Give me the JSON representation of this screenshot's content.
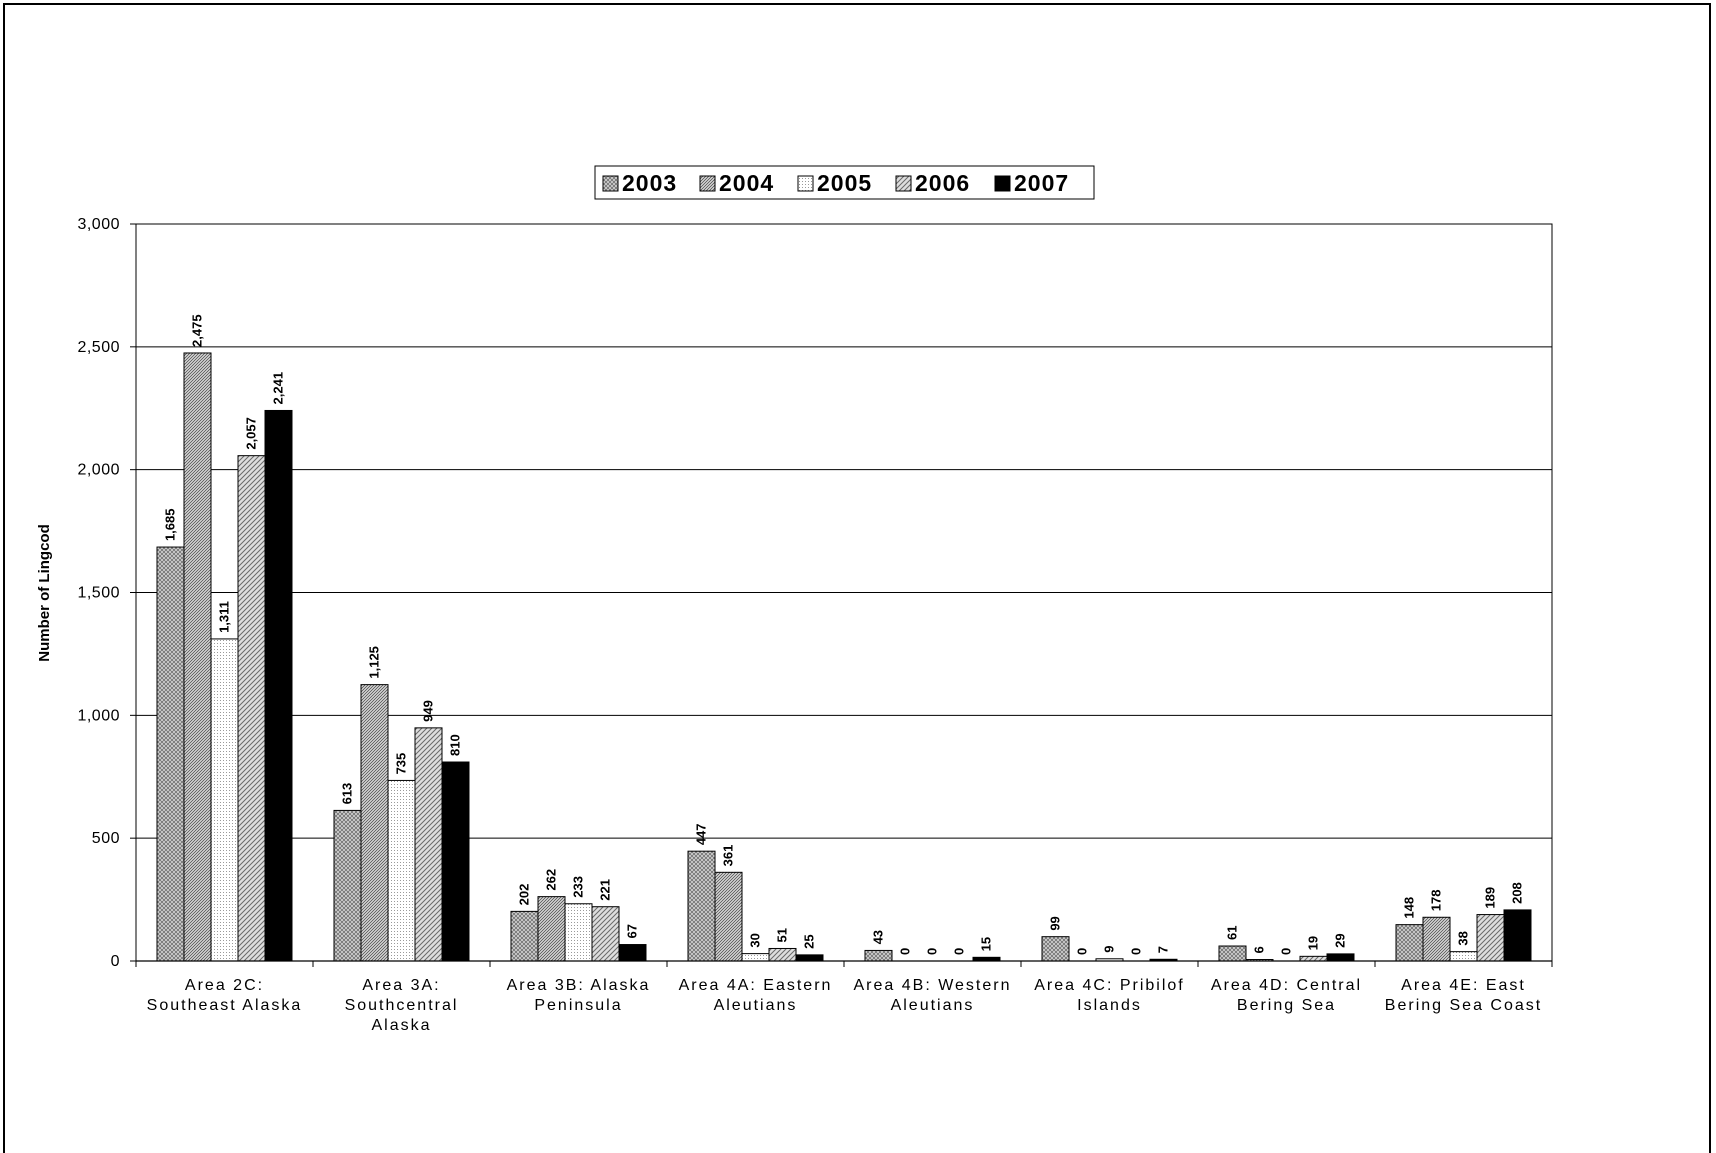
{
  "chart_data": {
    "type": "bar",
    "title": "",
    "xlabel": "",
    "ylabel": "Number of Lingcod",
    "ylim": [
      0,
      3000
    ],
    "yticks": [
      0,
      500,
      1000,
      1500,
      2000,
      2500,
      3000
    ],
    "ytick_labels": [
      "0",
      "500",
      "1,000",
      "1,500",
      "2,000",
      "2,500",
      "3,000"
    ],
    "grid": true,
    "legend_position": "top-center",
    "categories": [
      [
        "Area 2C:",
        "Southeast Alaska"
      ],
      [
        "Area 3A:",
        "Southcentral",
        "Alaska"
      ],
      [
        "Area 3B: Alaska",
        "Peninsula"
      ],
      [
        "Area 4A: Eastern",
        "Aleutians"
      ],
      [
        "Area 4B: Western",
        "Aleutians"
      ],
      [
        "Area 4C: Pribilof",
        "Islands"
      ],
      [
        "Area 4D: Central",
        "Bering Sea"
      ],
      [
        "Area 4E: East",
        "Bering Sea Coast"
      ]
    ],
    "series": [
      {
        "name": "2003",
        "pattern": "cross",
        "values": [
          1685,
          613,
          202,
          447,
          43,
          99,
          61,
          148
        ],
        "labels": [
          "1,685",
          "613",
          "202",
          "447",
          "43",
          "99",
          "61",
          "148"
        ]
      },
      {
        "name": "2004",
        "pattern": "diag-dense",
        "values": [
          2475,
          1125,
          262,
          361,
          0,
          0,
          6,
          178
        ],
        "labels": [
          "2,475",
          "1,125",
          "262",
          "361",
          "0",
          "0",
          "6",
          "178"
        ]
      },
      {
        "name": "2005",
        "pattern": "dots",
        "values": [
          1311,
          735,
          233,
          30,
          0,
          9,
          0,
          38
        ],
        "labels": [
          "1,311",
          "735",
          "233",
          "30",
          "0",
          "9",
          "0",
          "38"
        ]
      },
      {
        "name": "2006",
        "pattern": "diag-light",
        "values": [
          2057,
          949,
          221,
          51,
          0,
          0,
          19,
          189
        ],
        "labels": [
          "2,057",
          "949",
          "221",
          "51",
          "0",
          "0",
          "19",
          "189"
        ]
      },
      {
        "name": "2007",
        "pattern": "solid",
        "values": [
          2241,
          810,
          67,
          25,
          15,
          7,
          29,
          208
        ],
        "labels": [
          "2,241",
          "810",
          "67",
          "25",
          "15",
          "7",
          "29",
          "208"
        ]
      }
    ]
  },
  "colors": {
    "bar_fill": "#d9d9d9",
    "bar_stroke": "#000000",
    "solid": "#000000",
    "grid": "#000000"
  }
}
